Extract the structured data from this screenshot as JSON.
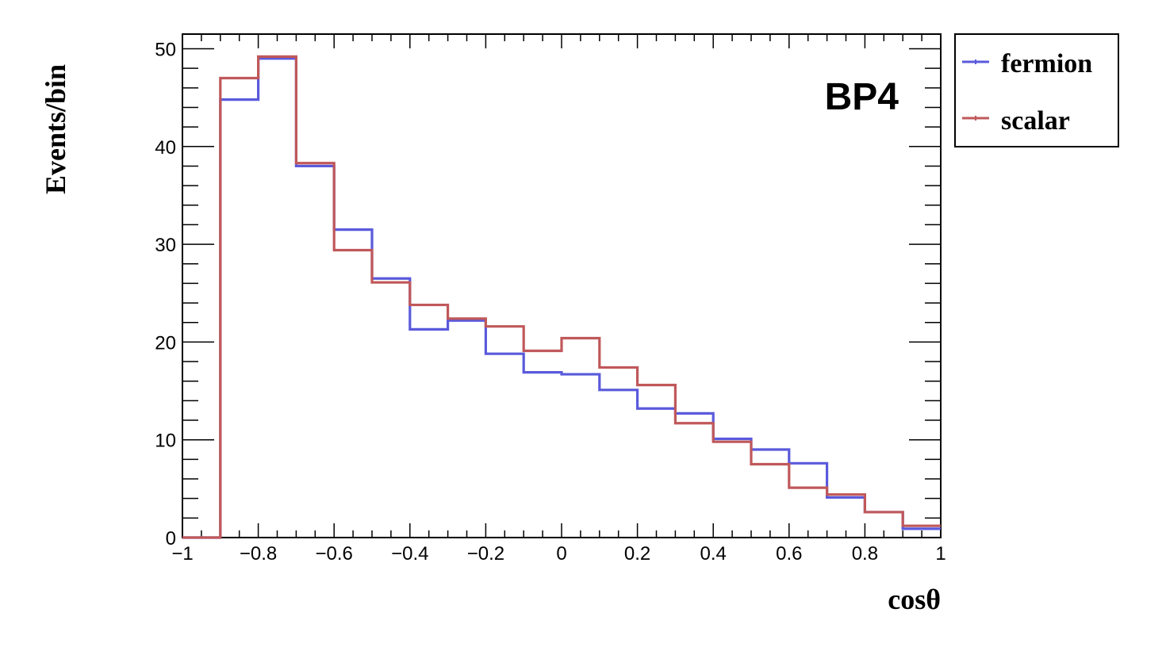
{
  "chart_data": {
    "type": "histogram",
    "xlabel": "cosθ",
    "ylabel": "Events/bin",
    "annotation": "BP4",
    "xlim": [
      -1,
      1
    ],
    "ylim": [
      0,
      51.5
    ],
    "x_ticks": [
      -1,
      -0.8,
      -0.6,
      -0.4,
      -0.2,
      0,
      0.2,
      0.4,
      0.6,
      0.8,
      1
    ],
    "x_tick_labels": [
      "−1",
      "−0.8",
      "−0.6",
      "−0.4",
      "−0.2",
      "0",
      "0.2",
      "0.4",
      "0.6",
      "0.8",
      "1"
    ],
    "y_ticks": [
      0,
      10,
      20,
      30,
      40,
      50
    ],
    "y_tick_labels": [
      "0",
      "10",
      "20",
      "30",
      "40",
      "50"
    ],
    "bin_edges": [
      -1,
      -0.9,
      -0.8,
      -0.7,
      -0.6,
      -0.5,
      -0.4,
      -0.3,
      -0.2,
      -0.1,
      0,
      0.1,
      0.2,
      0.3,
      0.4,
      0.5,
      0.6,
      0.7,
      0.8,
      0.9,
      1
    ],
    "series": [
      {
        "name": "fermion",
        "color": "#5a5adc",
        "values": [
          0,
          44.8,
          49.0,
          38.0,
          31.5,
          26.5,
          21.3,
          22.2,
          18.8,
          16.9,
          16.7,
          15.1,
          13.2,
          12.7,
          10.1,
          9.0,
          7.6,
          4.1,
          2.6,
          0.9
        ]
      },
      {
        "name": "scalar",
        "color": "#c0585a",
        "values": [
          0,
          47.0,
          49.2,
          38.3,
          29.4,
          26.1,
          23.8,
          22.4,
          21.6,
          19.1,
          20.4,
          17.4,
          15.6,
          11.7,
          9.8,
          7.5,
          5.1,
          4.4,
          2.6,
          1.2
        ]
      }
    ],
    "legend_position": "top-right, outside plot"
  }
}
